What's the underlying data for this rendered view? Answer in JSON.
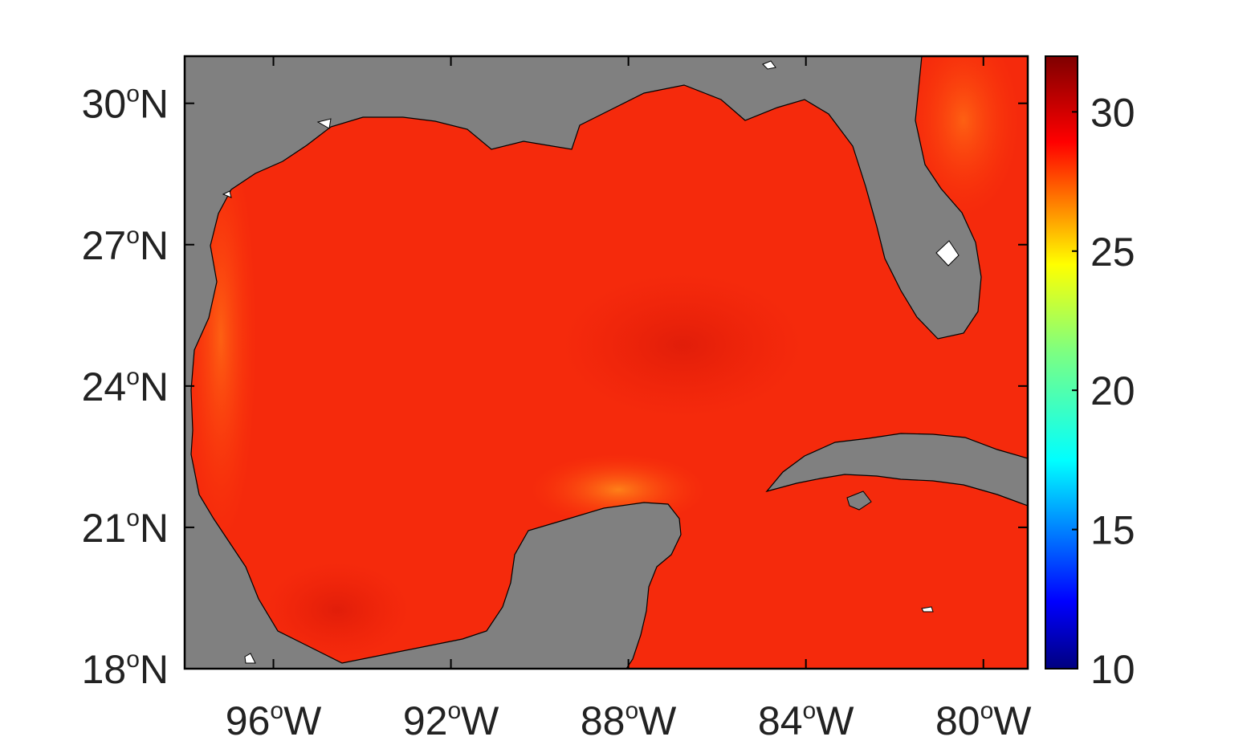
{
  "map": {
    "lat_ticks": [
      {
        "deg": "30",
        "hemi": "N",
        "value": 30
      },
      {
        "deg": "27",
        "hemi": "N",
        "value": 27
      },
      {
        "deg": "24",
        "hemi": "N",
        "value": 24
      },
      {
        "deg": "21",
        "hemi": "N",
        "value": 21
      },
      {
        "deg": "18",
        "hemi": "N",
        "value": 18
      }
    ],
    "lon_ticks": [
      {
        "deg": "96",
        "hemi": "W",
        "value": -96
      },
      {
        "deg": "92",
        "hemi": "W",
        "value": -92
      },
      {
        "deg": "88",
        "hemi": "W",
        "value": -88
      },
      {
        "deg": "84",
        "hemi": "W",
        "value": -84
      },
      {
        "deg": "80",
        "hemi": "W",
        "value": -80
      }
    ],
    "degree_symbol": "o",
    "lon_range": [
      -98,
      -79
    ],
    "lat_range": [
      18,
      31
    ],
    "land_color": "#808080",
    "water_color": "#ff2a0a",
    "coastline_color": "#000000"
  },
  "colorbar": {
    "ticks": [
      "30",
      "25",
      "20",
      "15",
      "10"
    ],
    "tick_values": [
      30,
      25,
      20,
      15,
      10
    ],
    "range": [
      10,
      32
    ],
    "colormap": "jet"
  }
}
